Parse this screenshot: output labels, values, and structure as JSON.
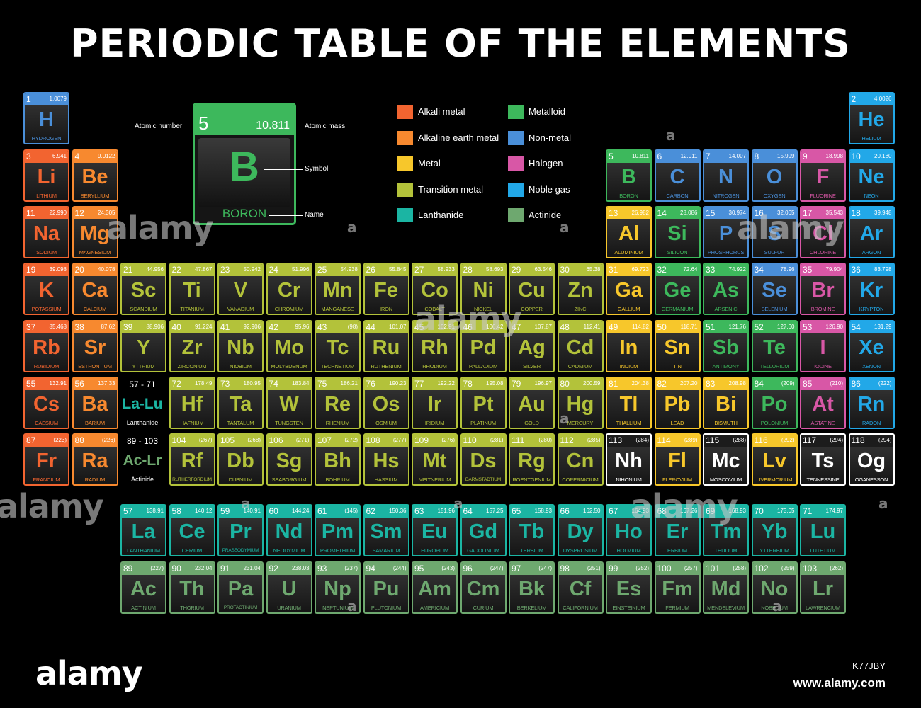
{
  "title": "PERIODIC TABLE OF THE ELEMENTS",
  "categories": {
    "alkali": {
      "label": "Alkali metal",
      "color": "#f26430"
    },
    "alkaline": {
      "label": "Alkaline earth metal",
      "color": "#f7892f"
    },
    "metal": {
      "label": "Metal",
      "color": "#f7c72b"
    },
    "transition": {
      "label": "Transition metal",
      "color": "#b3c23a"
    },
    "lanthanide": {
      "label": "Lanthanide",
      "color": "#1bb5a3"
    },
    "metalloid": {
      "label": "Metalloid",
      "color": "#3db85c"
    },
    "nonmetal": {
      "label": "Non-metal",
      "color": "#4a8fd9"
    },
    "halogen": {
      "label": "Halogen",
      "color": "#d857a6"
    },
    "noble": {
      "label": "Noble gas",
      "color": "#22a8e8"
    },
    "actinide": {
      "label": "Actinide",
      "color": "#6ea86f"
    },
    "unknown": {
      "label": "",
      "color": "#ffffff"
    }
  },
  "legend": [
    "alkali",
    "alkaline",
    "metal",
    "transition",
    "lanthanide",
    "metalloid",
    "nonmetal",
    "halogen",
    "noble",
    "actinide"
  ],
  "key": {
    "number": "5",
    "mass": "10.811",
    "symbol": "B",
    "name": "BORON",
    "labels": {
      "number": "Atomic number",
      "mass": "Atomic mass",
      "symbol": "Symbol",
      "name": "Name"
    }
  },
  "placeholders": [
    {
      "range": "57 - 71",
      "symbol": "La-Lu",
      "label": "Lanthanide",
      "category": "lanthanide"
    },
    {
      "range": "89 - 103",
      "symbol": "Ac-Lr",
      "label": "Actinide",
      "category": "actinide"
    }
  ],
  "elements": [
    [
      "1",
      "H",
      "HYDROGEN",
      "1.0079",
      "nonmetal",
      1,
      1
    ],
    [
      "2",
      "He",
      "HELIUM",
      "4.0026",
      "noble",
      1,
      18
    ],
    [
      "3",
      "Li",
      "LITHIUM",
      "6.941",
      "alkali",
      2,
      1
    ],
    [
      "4",
      "Be",
      "BERYLLIUM",
      "9.0122",
      "alkaline",
      2,
      2
    ],
    [
      "5",
      "B",
      "BORON",
      "10.811",
      "metalloid",
      2,
      13
    ],
    [
      "6",
      "C",
      "CARBON",
      "12.011",
      "nonmetal",
      2,
      14
    ],
    [
      "7",
      "N",
      "NITROGEN",
      "14.007",
      "nonmetal",
      2,
      15
    ],
    [
      "8",
      "O",
      "OXYGEN",
      "15.999",
      "nonmetal",
      2,
      16
    ],
    [
      "9",
      "F",
      "FLUORINE",
      "18.998",
      "halogen",
      2,
      17
    ],
    [
      "10",
      "Ne",
      "NEON",
      "20.180",
      "noble",
      2,
      18
    ],
    [
      "11",
      "Na",
      "SODIUM",
      "22.990",
      "alkali",
      3,
      1
    ],
    [
      "12",
      "Mg",
      "MAGNESIUM",
      "24.305",
      "alkaline",
      3,
      2
    ],
    [
      "13",
      "Al",
      "ALUMINIUM",
      "26.982",
      "metal",
      3,
      13
    ],
    [
      "14",
      "Si",
      "SILICON",
      "28.086",
      "metalloid",
      3,
      14
    ],
    [
      "15",
      "P",
      "PHOSPHORUS",
      "30.974",
      "nonmetal",
      3,
      15
    ],
    [
      "16",
      "S",
      "SULFUR",
      "32.065",
      "nonmetal",
      3,
      16
    ],
    [
      "17",
      "Cl",
      "CHLORINE",
      "35.543",
      "halogen",
      3,
      17
    ],
    [
      "18",
      "Ar",
      "ARGON",
      "39.948",
      "noble",
      3,
      18
    ],
    [
      "19",
      "K",
      "POTASSIUM",
      "39.098",
      "alkali",
      4,
      1
    ],
    [
      "20",
      "Ca",
      "CALCIUM",
      "40.078",
      "alkaline",
      4,
      2
    ],
    [
      "21",
      "Sc",
      "SCANDIUM",
      "44.956",
      "transition",
      4,
      3
    ],
    [
      "22",
      "Ti",
      "TITANIUM",
      "47.867",
      "transition",
      4,
      4
    ],
    [
      "23",
      "V",
      "VANADIUM",
      "50.942",
      "transition",
      4,
      5
    ],
    [
      "24",
      "Cr",
      "CHROMIUM",
      "51.996",
      "transition",
      4,
      6
    ],
    [
      "25",
      "Mn",
      "MANGANESE",
      "54.938",
      "transition",
      4,
      7
    ],
    [
      "26",
      "Fe",
      "IRON",
      "55.845",
      "transition",
      4,
      8
    ],
    [
      "27",
      "Co",
      "COBALT",
      "58.933",
      "transition",
      4,
      9
    ],
    [
      "28",
      "Ni",
      "NICKEL",
      "58.693",
      "transition",
      4,
      10
    ],
    [
      "29",
      "Cu",
      "COPPER",
      "63.546",
      "transition",
      4,
      11
    ],
    [
      "30",
      "Zn",
      "ZINC",
      "65.38",
      "transition",
      4,
      12
    ],
    [
      "31",
      "Ga",
      "GALLIUM",
      "69.723",
      "metal",
      4,
      13
    ],
    [
      "32",
      "Ge",
      "GERMANIUM",
      "72.64",
      "metalloid",
      4,
      14
    ],
    [
      "33",
      "As",
      "ARSENIC",
      "74.922",
      "metalloid",
      4,
      15
    ],
    [
      "34",
      "Se",
      "SELENIUM",
      "78.96",
      "nonmetal",
      4,
      16
    ],
    [
      "35",
      "Br",
      "BROMINE",
      "79.904",
      "halogen",
      4,
      17
    ],
    [
      "36",
      "Kr",
      "KRYPTON",
      "83.798",
      "noble",
      4,
      18
    ],
    [
      "37",
      "Rb",
      "RUBIDIUM",
      "85.468",
      "alkali",
      5,
      1
    ],
    [
      "38",
      "Sr",
      "ESTRONTIUM",
      "87.62",
      "alkaline",
      5,
      2
    ],
    [
      "39",
      "Y",
      "YTTRIUM",
      "88.906",
      "transition",
      5,
      3
    ],
    [
      "40",
      "Zr",
      "ZIRCONIUM",
      "91.224",
      "transition",
      5,
      4
    ],
    [
      "41",
      "Nb",
      "NIOBIUM",
      "92.906",
      "transition",
      5,
      5
    ],
    [
      "42",
      "Mo",
      "MOLYBDENUM",
      "95.96",
      "transition",
      5,
      6
    ],
    [
      "43",
      "Tc",
      "TECHNETIUM",
      "(98)",
      "transition",
      5,
      7
    ],
    [
      "44",
      "Ru",
      "RUTHENIUM",
      "101.07",
      "transition",
      5,
      8
    ],
    [
      "45",
      "Rh",
      "RHODIUM",
      "102.91",
      "transition",
      5,
      9
    ],
    [
      "46",
      "Pd",
      "PALLADIUM",
      "106.42",
      "transition",
      5,
      10
    ],
    [
      "47",
      "Ag",
      "SILVER",
      "107.87",
      "transition",
      5,
      11
    ],
    [
      "48",
      "Cd",
      "CADMIUM",
      "112.41",
      "transition",
      5,
      12
    ],
    [
      "49",
      "In",
      "INDIUM",
      "114.82",
      "metal",
      5,
      13
    ],
    [
      "50",
      "Sn",
      "TIN",
      "118.71",
      "metal",
      5,
      14
    ],
    [
      "51",
      "Sb",
      "ANTIMONY",
      "121.76",
      "metalloid",
      5,
      15
    ],
    [
      "52",
      "Te",
      "TELLURIUM",
      "127.60",
      "metalloid",
      5,
      16
    ],
    [
      "53",
      "I",
      "IODINE",
      "126.90",
      "halogen",
      5,
      17
    ],
    [
      "54",
      "Xe",
      "XENON",
      "131.29",
      "noble",
      5,
      18
    ],
    [
      "55",
      "Cs",
      "CAESIUM",
      "132.91",
      "alkali",
      6,
      1
    ],
    [
      "56",
      "Ba",
      "BARIUM",
      "137.33",
      "alkaline",
      6,
      2
    ],
    [
      "72",
      "Hf",
      "HAFNIUM",
      "178.49",
      "transition",
      6,
      4
    ],
    [
      "73",
      "Ta",
      "TANTALUM",
      "180.95",
      "transition",
      6,
      5
    ],
    [
      "74",
      "W",
      "TUNGSTEN",
      "183.84",
      "transition",
      6,
      6
    ],
    [
      "75",
      "Re",
      "RHENIUM",
      "186.21",
      "transition",
      6,
      7
    ],
    [
      "76",
      "Os",
      "OSMIUM",
      "190.23",
      "transition",
      6,
      8
    ],
    [
      "77",
      "Ir",
      "IRIDIUM",
      "192.22",
      "transition",
      6,
      9
    ],
    [
      "78",
      "Pt",
      "PLATINUM",
      "195.08",
      "transition",
      6,
      10
    ],
    [
      "79",
      "Au",
      "GOLD",
      "196.97",
      "transition",
      6,
      11
    ],
    [
      "80",
      "Hg",
      "MERCURY",
      "200.59",
      "transition",
      6,
      12
    ],
    [
      "81",
      "Tl",
      "THALLIUM",
      "204.38",
      "metal",
      6,
      13
    ],
    [
      "82",
      "Pb",
      "LEAD",
      "207.20",
      "metal",
      6,
      14
    ],
    [
      "83",
      "Bi",
      "BISMUTH",
      "208.98",
      "metal",
      6,
      15
    ],
    [
      "84",
      "Po",
      "POLONIUM",
      "(209)",
      "metalloid",
      6,
      16
    ],
    [
      "85",
      "At",
      "ASTATINE",
      "(210)",
      "halogen",
      6,
      17
    ],
    [
      "86",
      "Rn",
      "RADON",
      "(222)",
      "noble",
      6,
      18
    ],
    [
      "87",
      "Fr",
      "FRANCIUM",
      "(223)",
      "alkali",
      7,
      1
    ],
    [
      "88",
      "Ra",
      "RADIUM",
      "(226)",
      "alkaline",
      7,
      2
    ],
    [
      "104",
      "Rf",
      "RUTHERFORDIUM",
      "(267)",
      "transition",
      7,
      4
    ],
    [
      "105",
      "Db",
      "DUBNIUM",
      "(268)",
      "transition",
      7,
      5
    ],
    [
      "106",
      "Sg",
      "SEABORGIUM",
      "(271)",
      "transition",
      7,
      6
    ],
    [
      "107",
      "Bh",
      "BOHRIUM",
      "(272)",
      "transition",
      7,
      7
    ],
    [
      "108",
      "Hs",
      "HASSIUM",
      "(277)",
      "transition",
      7,
      8
    ],
    [
      "109",
      "Mt",
      "MEITNERIUM",
      "(276)",
      "transition",
      7,
      9
    ],
    [
      "110",
      "Ds",
      "DARMSTADTIUM",
      "(281)",
      "transition",
      7,
      10
    ],
    [
      "111",
      "Rg",
      "ROENTGENIUM",
      "(280)",
      "transition",
      7,
      11
    ],
    [
      "112",
      "Cn",
      "COPERNICIUM",
      "(285)",
      "transition",
      7,
      12
    ],
    [
      "113",
      "Nh",
      "NIHONIUM",
      "(284)",
      "unknown",
      7,
      13
    ],
    [
      "114",
      "Fl",
      "FLEROVIUM",
      "(289)",
      "metal",
      7,
      14
    ],
    [
      "115",
      "Mc",
      "MOSCOVIUM",
      "(288)",
      "unknown",
      7,
      15
    ],
    [
      "116",
      "Lv",
      "LIVERMORIUM",
      "(292)",
      "metal",
      7,
      16
    ],
    [
      "117",
      "Ts",
      "TENNESSINE",
      "(294)",
      "unknown",
      7,
      17
    ],
    [
      "118",
      "Og",
      "OGANESSON",
      "(294)",
      "unknown",
      7,
      18
    ],
    [
      "57",
      "La",
      "LANTHANIUM",
      "138.91",
      "lanthanide",
      9,
      3
    ],
    [
      "58",
      "Ce",
      "CERIUM",
      "140.12",
      "lanthanide",
      9,
      4
    ],
    [
      "59",
      "Pr",
      "PRASEODYMIUM",
      "140.91",
      "lanthanide",
      9,
      5
    ],
    [
      "60",
      "Nd",
      "NEODYMIUM",
      "144.24",
      "lanthanide",
      9,
      6
    ],
    [
      "61",
      "Pm",
      "PROMETHIUM",
      "(145)",
      "lanthanide",
      9,
      7
    ],
    [
      "62",
      "Sm",
      "SAMARIUM",
      "150.36",
      "lanthanide",
      9,
      8
    ],
    [
      "63",
      "Eu",
      "EUROPIUM",
      "151.96",
      "lanthanide",
      9,
      9
    ],
    [
      "64",
      "Gd",
      "GADOLINIUM",
      "157.25",
      "lanthanide",
      9,
      10
    ],
    [
      "65",
      "Tb",
      "TERBIUM",
      "158.93",
      "lanthanide",
      9,
      11
    ],
    [
      "66",
      "Dy",
      "DYSPROSIUM",
      "162.50",
      "lanthanide",
      9,
      12
    ],
    [
      "67",
      "Ho",
      "HOLMIUM",
      "164.93",
      "lanthanide",
      9,
      13
    ],
    [
      "68",
      "Er",
      "ERBIUM",
      "167.26",
      "lanthanide",
      9,
      14
    ],
    [
      "69",
      "Tm",
      "THULIUM",
      "168.93",
      "lanthanide",
      9,
      15
    ],
    [
      "70",
      "Yb",
      "YTTERBIUM",
      "173.05",
      "lanthanide",
      9,
      16
    ],
    [
      "71",
      "Lu",
      "LUTETIUM",
      "174.97",
      "lanthanide",
      9,
      17
    ],
    [
      "89",
      "Ac",
      "ACTINIUM",
      "(227)",
      "actinide",
      10,
      3
    ],
    [
      "90",
      "Th",
      "THORIUM",
      "232.04",
      "actinide",
      10,
      4
    ],
    [
      "91",
      "Pa",
      "PROTACTINIUM",
      "231.04",
      "actinide",
      10,
      5
    ],
    [
      "92",
      "U",
      "URANIUM",
      "238.03",
      "actinide",
      10,
      6
    ],
    [
      "93",
      "Np",
      "NEPTUNIUM",
      "(237)",
      "actinide",
      10,
      7
    ],
    [
      "94",
      "Pu",
      "PLUTONIUM",
      "(244)",
      "actinide",
      10,
      8
    ],
    [
      "95",
      "Am",
      "AMERICIUM",
      "(243)",
      "actinide",
      10,
      9
    ],
    [
      "96",
      "Cm",
      "CURIUM",
      "(247)",
      "actinide",
      10,
      10
    ],
    [
      "97",
      "Bk",
      "BERKELIUM",
      "(247)",
      "actinide",
      10,
      11
    ],
    [
      "98",
      "Cf",
      "CALIFORNIUM",
      "(251)",
      "actinide",
      10,
      12
    ],
    [
      "99",
      "Es",
      "EINSTEINIUM",
      "(252)",
      "actinide",
      10,
      13
    ],
    [
      "100",
      "Fm",
      "FERMIUM",
      "(257)",
      "actinide",
      10,
      14
    ],
    [
      "101",
      "Md",
      "MENDELEVIUM",
      "(258)",
      "actinide",
      10,
      15
    ],
    [
      "102",
      "No",
      "NOBELIUM",
      "(259)",
      "actinide",
      10,
      16
    ],
    [
      "103",
      "Lr",
      "LAWRENCIUM",
      "(262)",
      "actinide",
      10,
      17
    ]
  ],
  "watermark": {
    "text": "alamy",
    "glyph": "a"
  },
  "footer": {
    "brand": "alamy",
    "image_id": "K77JBY",
    "site": "www.alamy.com"
  }
}
